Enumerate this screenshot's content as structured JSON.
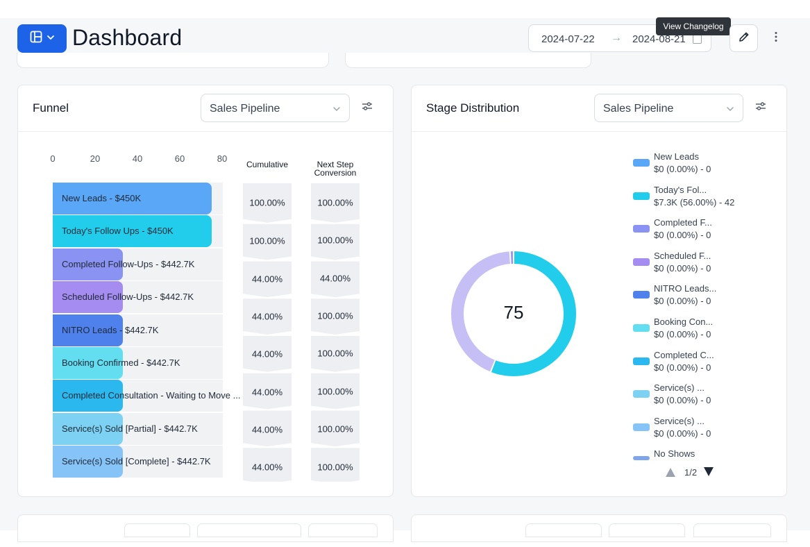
{
  "header": {
    "title": "Dashboard",
    "date_start": "2024-07-22",
    "date_arrow": "→",
    "date_end": "2024-08-21",
    "tooltip": "View Changelog"
  },
  "funnel": {
    "title": "Funnel",
    "select_value": "Sales Pipeline",
    "axis_ticks": [
      "0",
      "20",
      "40",
      "60",
      "80"
    ],
    "col_cumulative": "Cumulative",
    "col_next_1": "Next Step",
    "col_next_2": "Conversion",
    "stages": [
      {
        "label": "New Leads - $450K",
        "value": 75,
        "color": "#5aa6f7",
        "cumulative": "100.00%",
        "next": "100.00%"
      },
      {
        "label": "Today's Follow Ups - $450K",
        "value": 75,
        "color": "#22cdec",
        "cumulative": "100.00%",
        "next": "100.00%"
      },
      {
        "label": "Completed Follow-Ups - $442.7K",
        "value": 33,
        "color": "#8b93f2",
        "cumulative": "44.00%",
        "next": "44.00%"
      },
      {
        "label": "Scheduled Follow-Ups - $442.7K",
        "value": 33,
        "color": "#a48cf0",
        "cumulative": "44.00%",
        "next": "100.00%"
      },
      {
        "label": "NITRO Leads - $442.7K",
        "value": 33,
        "color": "#4f81ec",
        "cumulative": "44.00%",
        "next": "100.00%"
      },
      {
        "label": "Booking Confirmed - $442.7K",
        "value": 33,
        "color": "#62def0",
        "cumulative": "44.00%",
        "next": "100.00%"
      },
      {
        "label": "Completed Consultation - Waiting to Move ...",
        "value": 33,
        "color": "#2bb8ee",
        "cumulative": "44.00%",
        "next": "100.00%"
      },
      {
        "label": "Service(s) Sold [Partial] - $442.7K",
        "value": 33,
        "color": "#7dd2f3",
        "cumulative": "44.00%",
        "next": "100.00%"
      },
      {
        "label": "Service(s) Sold [Complete] - $442.7K",
        "value": 33,
        "color": "#86c4f8",
        "cumulative": "",
        "next": ""
      }
    ]
  },
  "stage_distribution": {
    "title": "Stage Distribution",
    "select_value": "Sales Pipeline",
    "center_value": "75",
    "page_indicator": "1/2",
    "slices": [
      {
        "value": 42,
        "color": "#22cdec"
      },
      {
        "value": 32.3,
        "color": "#c6bff5"
      },
      {
        "value": 0.7,
        "color": "#9b97f0"
      }
    ],
    "legend": [
      {
        "name": "New Leads",
        "value": "$0 (0.00%) - 0",
        "color": "#5aa6f7"
      },
      {
        "name": "Today's Fol...",
        "value": "$7.3K (56.00%) - 42",
        "color": "#22cdec"
      },
      {
        "name": "Completed F...",
        "value": "$0 (0.00%) - 0",
        "color": "#8b93f2"
      },
      {
        "name": "Scheduled F...",
        "value": "$0 (0.00%) - 0",
        "color": "#a48cf0"
      },
      {
        "name": "NITRO Leads...",
        "value": "$0 (0.00%) - 0",
        "color": "#4f81ec"
      },
      {
        "name": "Booking Con...",
        "value": "$0 (0.00%) - 0",
        "color": "#62def0"
      },
      {
        "name": "Completed C...",
        "value": "$0 (0.00%) - 0",
        "color": "#2bb8ee"
      },
      {
        "name": "Service(s) ...",
        "value": "$0 (0.00%) - 0",
        "color": "#7dd2f3"
      },
      {
        "name": "Service(s) ...",
        "value": "$0 (0.00%) - 0",
        "color": "#86c4f8"
      },
      {
        "name": "No Shows",
        "value": "",
        "color": "#7fa6ec"
      }
    ]
  }
}
